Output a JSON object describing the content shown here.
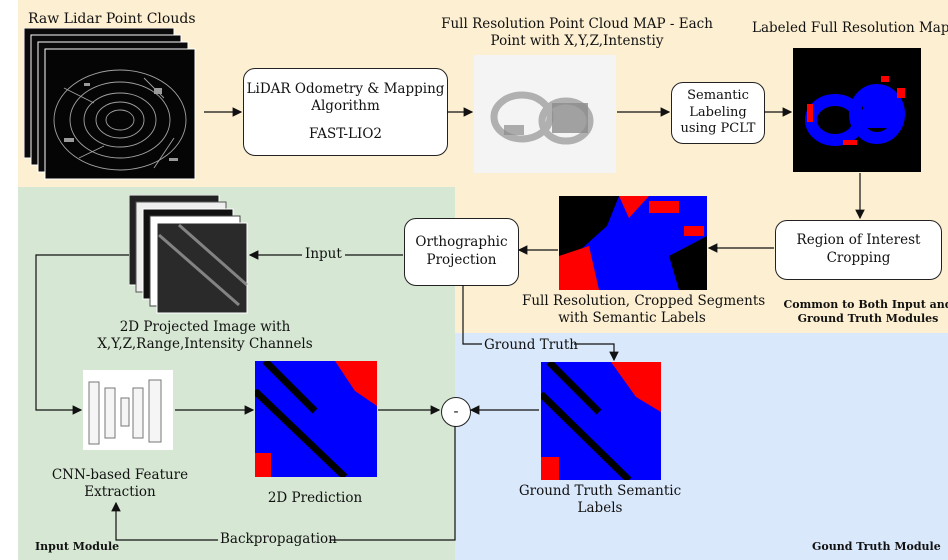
{
  "titles": {
    "raw_lidar": "Raw Lidar Point Clouds",
    "full_res_map_line1": "Full Resolution Point Cloud MAP - Each",
    "full_res_map_line2": "Point  with X,Y,Z,Intenstiy",
    "labeled_map": "Labeled Full Resolution Map"
  },
  "boxes": {
    "lio_line1": "LiDAR Odometry & Mapping",
    "lio_line2": "Algorithm",
    "lio_line3": "FAST-LIO2",
    "semantic_line1": "Semantic",
    "semantic_line2": "Labeling",
    "semantic_line3": "using PCLT",
    "roi_line1": "Region of Interest",
    "roi_line2": "Cropping",
    "ortho_line1": "Orthographic",
    "ortho_line2": "Projection",
    "minus": "-"
  },
  "captions": {
    "cropped_line1": "Full Resolution, Cropped Segments",
    "cropped_line2": "with Semantic Labels",
    "projected_line1": "2D Projected Image with",
    "projected_line2": "X,Y,Z,Range,Intensity Channels",
    "cnn_line1": "CNN-based Feature",
    "cnn_line2": "Extraction",
    "prediction": "2D Prediction",
    "gt_line1": "Ground Truth Semantic",
    "gt_line2": "Labels"
  },
  "edge_labels": {
    "input": "Input",
    "ground_truth": "Ground Truth",
    "backprop": "Backpropagation"
  },
  "modules": {
    "common_line1": "Common to Both Input and",
    "common_line2": "Ground Truth Modules",
    "input": "Input Module",
    "gt": "Gound Truth Module"
  },
  "colors": {
    "common_bg": "#fdf0d2",
    "input_bg": "#d6e8d4",
    "gt_bg": "#dae8fb",
    "label_blue": "#0000ff",
    "label_red": "#ff0000"
  }
}
